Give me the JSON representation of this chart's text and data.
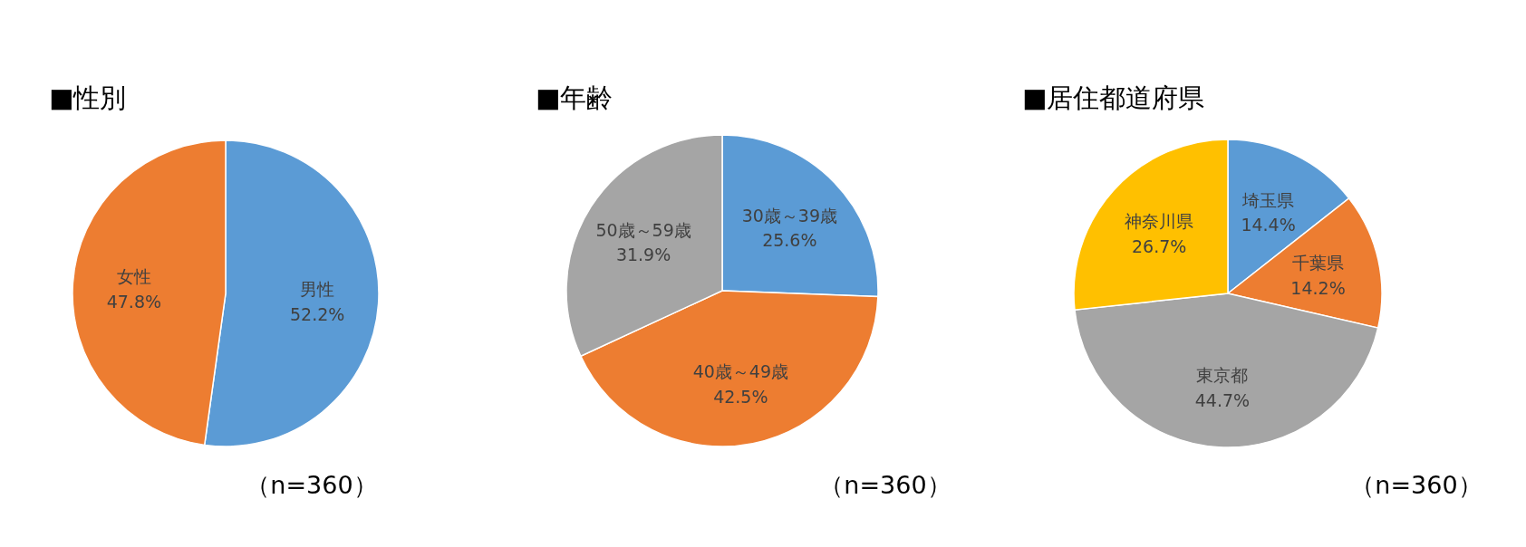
{
  "chart_data": [
    {
      "type": "pie",
      "title": "■性別",
      "categories": [
        "男性",
        "女性"
      ],
      "values": [
        52.2,
        47.8
      ],
      "colors": [
        "#5b9bd5",
        "#ed7d31"
      ],
      "value_labels": [
        "52.2%",
        "47.8%"
      ],
      "annotations": [
        "（n=360）"
      ]
    },
    {
      "type": "pie",
      "title": "■年齢",
      "categories": [
        "30歳～39歳",
        "40歳～49歳",
        "50歳～59歳"
      ],
      "values": [
        25.6,
        42.5,
        31.9
      ],
      "colors": [
        "#5b9bd5",
        "#ed7d31",
        "#a5a5a5"
      ],
      "value_labels": [
        "25.6%",
        "42.5%",
        "31.9%"
      ],
      "annotations": [
        "（n=360）"
      ]
    },
    {
      "type": "pie",
      "title": "■居住都道府県",
      "categories": [
        "埼玉県",
        "千葉県",
        "東京都",
        "神奈川県"
      ],
      "values": [
        14.4,
        14.2,
        44.7,
        26.7
      ],
      "colors": [
        "#5b9bd5",
        "#ed7d31",
        "#a5a5a5",
        "#ffc000"
      ],
      "value_labels": [
        "14.4%",
        "14.2%",
        "44.7%",
        "26.7%"
      ],
      "annotations": [
        "（n=360）"
      ]
    }
  ]
}
